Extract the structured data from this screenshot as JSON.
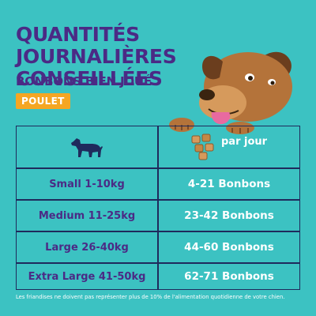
{
  "header": {
    "title": "QUANTITÉS JOURNALIÈRES CONSEILLÉES",
    "subtitle": "BONBONS BIEN JOUÉ",
    "flavor_badge": "POULET"
  },
  "table": {
    "column_header_right": "par jour",
    "rows": [
      {
        "size": "Small 1-10kg",
        "amount": "4-21 Bonbons"
      },
      {
        "size": "Medium 11-25kg",
        "amount": "23-42 Bonbons"
      },
      {
        "size": "Large 26-40kg",
        "amount": "44-60 Bonbons"
      },
      {
        "size": "Extra Large 41-50kg",
        "amount": "62-71 Bonbons"
      }
    ]
  },
  "icons": {
    "dog_silhouette": "dog-silhouette-icon",
    "treats": "treats-icon",
    "dog_illustration": "dog-illustration"
  },
  "colors": {
    "background": "#3cc2c2",
    "title": "#4b2a85",
    "badge": "#f5a623",
    "table_border": "#1f2a5c"
  },
  "footer": {
    "note": "Les friandises ne doivent pas représenter plus de 10% de l'alimentation quotidienne de votre chien."
  }
}
